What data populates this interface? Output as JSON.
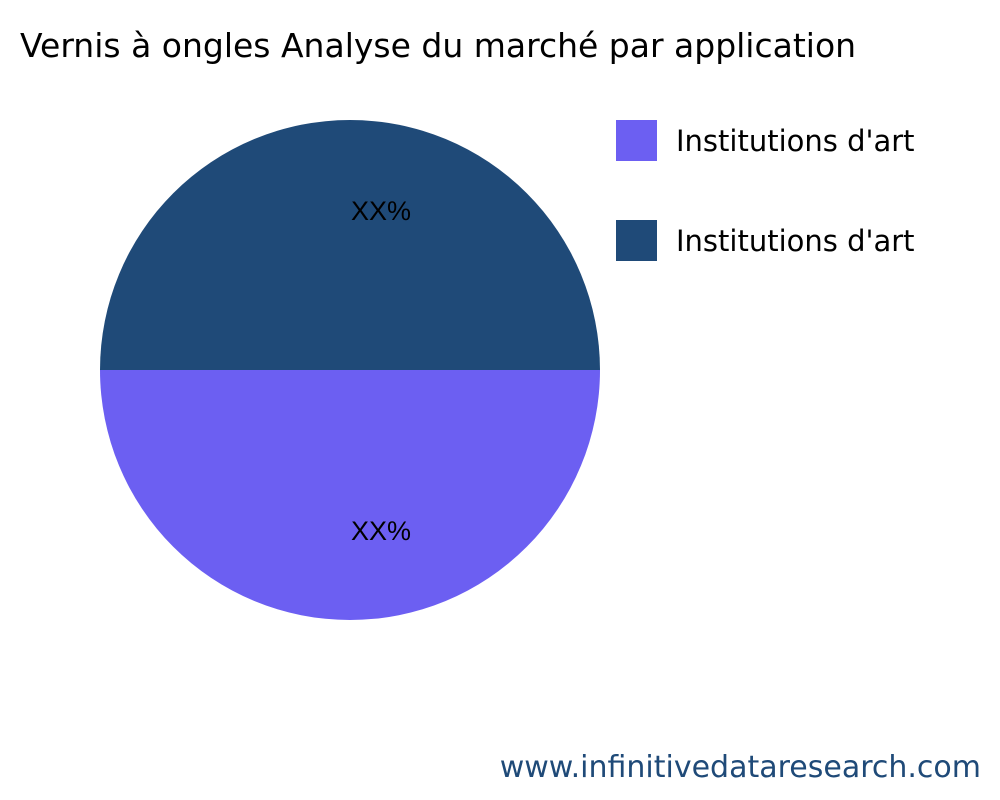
{
  "chart_data": {
    "type": "pie",
    "title": "Vernis à ongles Analyse du marché par application",
    "slices": [
      {
        "label": "Institutions d'art",
        "value": 50,
        "display_label": "XX%",
        "color": "#6c5ff2"
      },
      {
        "label": "Institutions d'art",
        "value": 50,
        "display_label": "XX%",
        "color": "#1f4a78"
      }
    ],
    "legend_position": "right"
  },
  "watermark": "www.infinitivedataresearch.com"
}
